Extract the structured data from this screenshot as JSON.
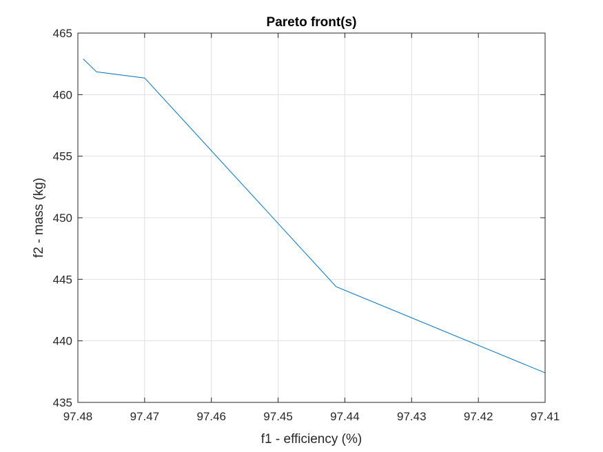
{
  "chart_data": {
    "type": "line",
    "title": "Pareto front(s)",
    "xlabel": "f1 - efficiency (%)",
    "ylabel": "f2 - mass (kg)",
    "xlim": [
      97.48,
      97.41
    ],
    "x_reversed": true,
    "ylim": [
      435,
      465
    ],
    "xticks": [
      97.48,
      97.47,
      97.46,
      97.45,
      97.44,
      97.43,
      97.42,
      97.41
    ],
    "xtick_labels": [
      "97.48",
      "97.47",
      "97.46",
      "97.45",
      "97.44",
      "97.43",
      "97.42",
      "97.41"
    ],
    "yticks": [
      435,
      440,
      445,
      450,
      455,
      460,
      465
    ],
    "ytick_labels": [
      "435",
      "440",
      "445",
      "450",
      "455",
      "460",
      "465"
    ],
    "grid": true,
    "series": [
      {
        "color": "#0072BD",
        "x": [
          97.4792,
          97.4772,
          97.47,
          97.4413,
          97.41
        ],
        "y": [
          462.9,
          461.85,
          461.35,
          444.4,
          437.4
        ]
      }
    ]
  }
}
